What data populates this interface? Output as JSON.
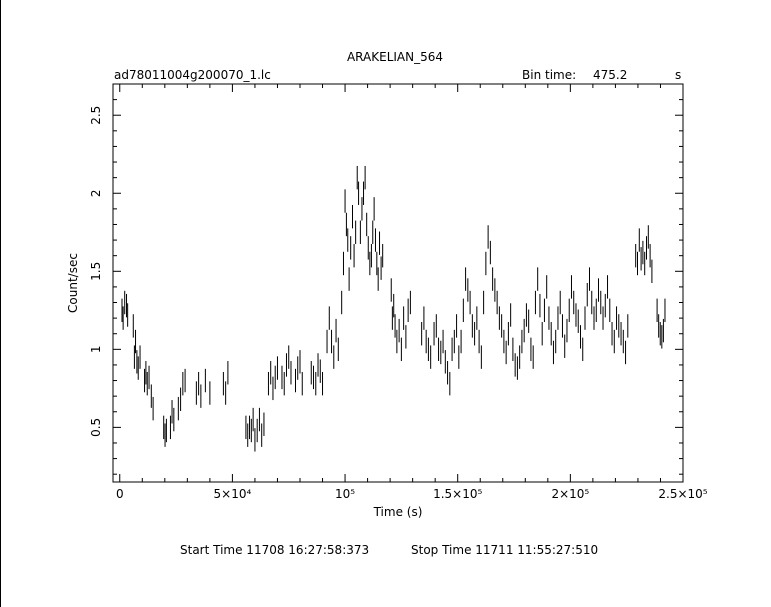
{
  "chart_data": {
    "type": "scatter",
    "title": "ARAKELIAN_564",
    "subtitle_left": "ad78011004g200070_1.lc",
    "bin_time_label": "Bin time:",
    "bin_time_value": "475.2",
    "bin_time_unit": "s",
    "xlabel": "Time (s)",
    "ylabel": "Count/sec",
    "xlim": [
      -3000,
      250000
    ],
    "ylim": [
      0.15,
      2.7
    ],
    "x_ticks": [
      {
        "value": 0,
        "label": "0"
      },
      {
        "value": 50000,
        "label": "5×10⁴"
      },
      {
        "value": 100000,
        "label": "10⁵"
      },
      {
        "value": 150000,
        "label": "1.5×10⁵"
      },
      {
        "value": 200000,
        "label": "2×10⁵"
      },
      {
        "value": 250000,
        "label": "2.5×10⁵"
      }
    ],
    "y_ticks": [
      {
        "value": 0.5,
        "label": "0.5"
      },
      {
        "value": 1,
        "label": "1"
      },
      {
        "value": 1.5,
        "label": "1.5"
      },
      {
        "value": 2,
        "label": "2"
      },
      {
        "value": 2.5,
        "label": "2.5"
      }
    ],
    "grid": false,
    "error_bar_half_height": 0.075,
    "points": [
      [
        1000,
        1.25
      ],
      [
        1500,
        1.2
      ],
      [
        2200,
        1.3
      ],
      [
        3000,
        1.28
      ],
      [
        3500,
        1.22
      ],
      [
        6000,
        1.15
      ],
      [
        6500,
        0.95
      ],
      [
        7000,
        1.05
      ],
      [
        7600,
        0.92
      ],
      [
        8200,
        0.88
      ],
      [
        9000,
        0.95
      ],
      [
        11000,
        0.8
      ],
      [
        11600,
        0.85
      ],
      [
        12200,
        0.78
      ],
      [
        13000,
        0.82
      ],
      [
        14000,
        0.7
      ],
      [
        14800,
        0.62
      ],
      [
        19500,
        0.5
      ],
      [
        20100,
        0.45
      ],
      [
        20700,
        0.48
      ],
      [
        22500,
        0.5
      ],
      [
        23200,
        0.6
      ],
      [
        24000,
        0.55
      ],
      [
        26000,
        0.62
      ],
      [
        27000,
        0.68
      ],
      [
        28000,
        0.78
      ],
      [
        29000,
        0.8
      ],
      [
        34000,
        0.72
      ],
      [
        35000,
        0.78
      ],
      [
        36000,
        0.7
      ],
      [
        38000,
        0.8
      ],
      [
        40000,
        0.72
      ],
      [
        46000,
        0.78
      ],
      [
        47000,
        0.72
      ],
      [
        48000,
        0.85
      ],
      [
        56000,
        0.5
      ],
      [
        56800,
        0.45
      ],
      [
        57600,
        0.5
      ],
      [
        58400,
        0.48
      ],
      [
        59200,
        0.55
      ],
      [
        60000,
        0.42
      ],
      [
        61000,
        0.48
      ],
      [
        62000,
        0.55
      ],
      [
        63000,
        0.45
      ],
      [
        64000,
        0.52
      ],
      [
        66000,
        0.78
      ],
      [
        67000,
        0.85
      ],
      [
        68000,
        0.75
      ],
      [
        69000,
        0.82
      ],
      [
        70000,
        0.88
      ],
      [
        72000,
        0.82
      ],
      [
        73000,
        0.78
      ],
      [
        74000,
        0.9
      ],
      [
        75000,
        0.95
      ],
      [
        76000,
        0.85
      ],
      [
        78000,
        0.8
      ],
      [
        79000,
        0.88
      ],
      [
        80000,
        0.92
      ],
      [
        81000,
        0.78
      ],
      [
        85000,
        0.85
      ],
      [
        86000,
        0.82
      ],
      [
        87000,
        0.78
      ],
      [
        88000,
        0.9
      ],
      [
        89000,
        0.86
      ],
      [
        90000,
        0.78
      ],
      [
        92000,
        1.05
      ],
      [
        93000,
        1.2
      ],
      [
        94000,
        1.05
      ],
      [
        95000,
        0.95
      ],
      [
        96000,
        1.12
      ],
      [
        97000,
        1.0
      ],
      [
        98500,
        1.3
      ],
      [
        99300,
        1.55
      ],
      [
        100000,
        1.95
      ],
      [
        100600,
        1.8
      ],
      [
        101200,
        1.7
      ],
      [
        101800,
        1.45
      ],
      [
        102500,
        1.65
      ],
      [
        103300,
        1.85
      ],
      [
        104000,
        1.6
      ],
      [
        104700,
        1.75
      ],
      [
        105400,
        2.1
      ],
      [
        106000,
        2.0
      ],
      [
        106800,
        1.75
      ],
      [
        107500,
        1.9
      ],
      [
        108200,
        2.0
      ],
      [
        108900,
        2.1
      ],
      [
        109600,
        1.8
      ],
      [
        110300,
        1.65
      ],
      [
        111000,
        1.55
      ],
      [
        111700,
        1.6
      ],
      [
        112300,
        1.75
      ],
      [
        112900,
        1.9
      ],
      [
        113500,
        1.7
      ],
      [
        114100,
        1.55
      ],
      [
        114700,
        1.45
      ],
      [
        115300,
        1.68
      ],
      [
        116000,
        1.52
      ],
      [
        116700,
        1.6
      ],
      [
        120500,
        1.38
      ],
      [
        121000,
        1.2
      ],
      [
        121600,
        1.28
      ],
      [
        122200,
        1.15
      ],
      [
        123000,
        1.05
      ],
      [
        124000,
        1.12
      ],
      [
        125000,
        1.0
      ],
      [
        126000,
        1.2
      ],
      [
        127000,
        1.08
      ],
      [
        128000,
        1.25
      ],
      [
        129000,
        1.3
      ],
      [
        134000,
        1.1
      ],
      [
        135000,
        1.2
      ],
      [
        136000,
        1.05
      ],
      [
        137000,
        1.0
      ],
      [
        138000,
        0.95
      ],
      [
        139500,
        1.1
      ],
      [
        140500,
        1.15
      ],
      [
        141500,
        1.0
      ],
      [
        142500,
        0.98
      ],
      [
        143500,
        1.05
      ],
      [
        144500,
        0.92
      ],
      [
        145500,
        0.85
      ],
      [
        146500,
        0.78
      ],
      [
        147500,
        1.0
      ],
      [
        148500,
        1.05
      ],
      [
        149500,
        1.15
      ],
      [
        150500,
        0.95
      ],
      [
        151500,
        1.05
      ],
      [
        152500,
        1.25
      ],
      [
        153500,
        1.45
      ],
      [
        154500,
        1.38
      ],
      [
        155500,
        1.3
      ],
      [
        156500,
        1.15
      ],
      [
        157500,
        1.1
      ],
      [
        158500,
        1.2
      ],
      [
        159500,
        1.05
      ],
      [
        160500,
        0.95
      ],
      [
        161500,
        1.3
      ],
      [
        162500,
        1.55
      ],
      [
        163500,
        1.72
      ],
      [
        164500,
        1.62
      ],
      [
        165500,
        1.45
      ],
      [
        166500,
        1.38
      ],
      [
        167500,
        1.3
      ],
      [
        168500,
        1.2
      ],
      [
        169500,
        1.15
      ],
      [
        170500,
        1.05
      ],
      [
        171500,
        0.98
      ],
      [
        172500,
        1.1
      ],
      [
        173500,
        1.22
      ],
      [
        174500,
        1.0
      ],
      [
        175500,
        0.9
      ],
      [
        176500,
        0.88
      ],
      [
        177500,
        0.95
      ],
      [
        178500,
        1.05
      ],
      [
        179500,
        1.12
      ],
      [
        180500,
        1.22
      ],
      [
        181500,
        1.18
      ],
      [
        182500,
        1.0
      ],
      [
        183500,
        0.95
      ],
      [
        184500,
        1.3
      ],
      [
        185500,
        1.45
      ],
      [
        186500,
        1.28
      ],
      [
        187500,
        1.1
      ],
      [
        188500,
        1.25
      ],
      [
        189500,
        1.4
      ],
      [
        190500,
        1.2
      ],
      [
        191500,
        1.1
      ],
      [
        192500,
        0.98
      ],
      [
        193500,
        1.05
      ],
      [
        194500,
        1.2
      ],
      [
        195500,
        1.3
      ],
      [
        196500,
        1.15
      ],
      [
        197500,
        1.02
      ],
      [
        198500,
        1.12
      ],
      [
        199500,
        1.25
      ],
      [
        200500,
        1.4
      ],
      [
        201500,
        1.3
      ],
      [
        202500,
        1.22
      ],
      [
        203500,
        1.18
      ],
      [
        204500,
        1.08
      ],
      [
        205500,
        1.0
      ],
      [
        206500,
        1.2
      ],
      [
        207500,
        1.35
      ],
      [
        208500,
        1.45
      ],
      [
        209500,
        1.3
      ],
      [
        210500,
        1.2
      ],
      [
        211500,
        1.25
      ],
      [
        212500,
        1.38
      ],
      [
        213500,
        1.3
      ],
      [
        214500,
        1.2
      ],
      [
        215500,
        1.28
      ],
      [
        216500,
        1.4
      ],
      [
        217500,
        1.25
      ],
      [
        218500,
        1.1
      ],
      [
        219500,
        1.05
      ],
      [
        220500,
        1.2
      ],
      [
        221500,
        1.15
      ],
      [
        222500,
        1.1
      ],
      [
        223500,
        1.05
      ],
      [
        224500,
        0.98
      ],
      [
        225500,
        1.15
      ],
      [
        229000,
        1.6
      ],
      [
        229800,
        1.55
      ],
      [
        230600,
        1.7
      ],
      [
        231400,
        1.58
      ],
      [
        232200,
        1.62
      ],
      [
        233000,
        1.55
      ],
      [
        233800,
        1.65
      ],
      [
        234600,
        1.72
      ],
      [
        235400,
        1.6
      ],
      [
        236200,
        1.5
      ],
      [
        238500,
        1.25
      ],
      [
        239200,
        1.15
      ],
      [
        239900,
        1.1
      ],
      [
        240600,
        1.08
      ],
      [
        241300,
        1.12
      ],
      [
        242000,
        1.25
      ]
    ]
  },
  "footer": {
    "start_time": "Start Time 11708 16:27:58:373",
    "stop_time": "Stop Time 11711 11:55:27:510"
  }
}
